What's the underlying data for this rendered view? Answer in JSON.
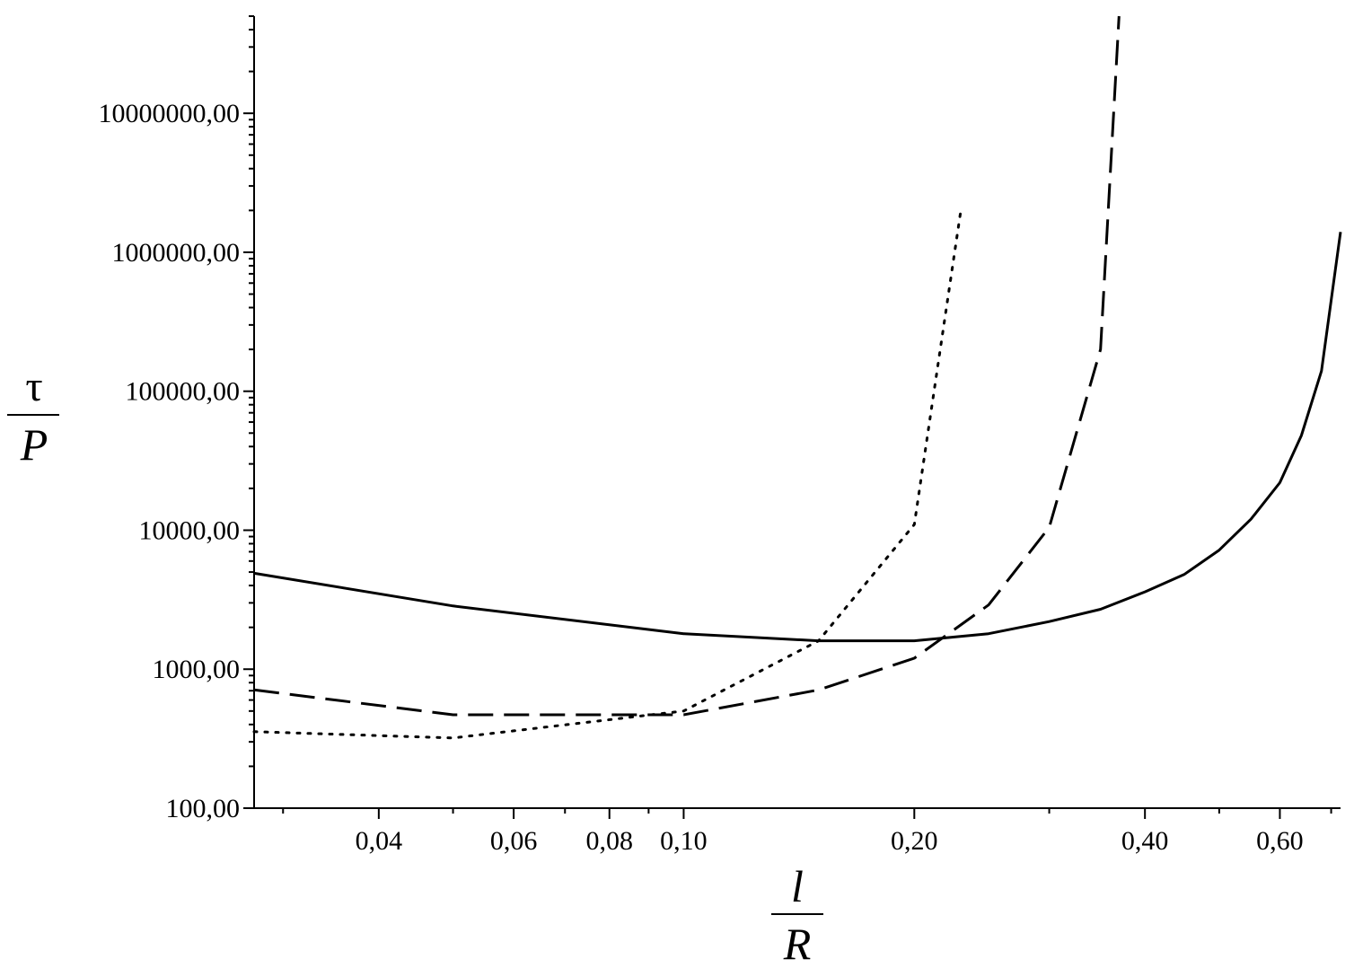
{
  "chart_data": {
    "type": "line",
    "title": "",
    "xscale": "log",
    "yscale": "log",
    "xlim": [
      0.0275,
      0.72
    ],
    "ylim": [
      100,
      50000000
    ],
    "grid": false,
    "legend": "none",
    "xlabel": {
      "numerator": "l",
      "denominator": "R"
    },
    "ylabel": {
      "numerator": "τ",
      "denominator": "P"
    },
    "x_ticks": [
      {
        "value": 0.04,
        "label": "0,04"
      },
      {
        "value": 0.06,
        "label": "0,06"
      },
      {
        "value": 0.08,
        "label": "0,08"
      },
      {
        "value": 0.1,
        "label": "0,10"
      },
      {
        "value": 0.2,
        "label": "0,20"
      },
      {
        "value": 0.4,
        "label": "0,40"
      },
      {
        "value": 0.6,
        "label": "0,60"
      }
    ],
    "y_ticks": [
      {
        "value": 100,
        "label": "100,00"
      },
      {
        "value": 1000,
        "label": "1000,00"
      },
      {
        "value": 10000,
        "label": "10000,00"
      },
      {
        "value": 100000,
        "label": "100000,00"
      },
      {
        "value": 1000000,
        "label": "1000000,00"
      },
      {
        "value": 10000000,
        "label": "10000000,00"
      }
    ],
    "series": [
      {
        "style": "solid",
        "color": "#000000",
        "points": [
          [
            0.0275,
            4900
          ],
          [
            0.05,
            2850
          ],
          [
            0.1,
            1800
          ],
          [
            0.15,
            1600
          ],
          [
            0.2,
            1600
          ],
          [
            0.25,
            1800
          ],
          [
            0.3,
            2200
          ],
          [
            0.35,
            2700
          ],
          [
            0.4,
            3600
          ],
          [
            0.45,
            4800
          ],
          [
            0.5,
            7200
          ],
          [
            0.55,
            12000
          ],
          [
            0.6,
            22000
          ],
          [
            0.64,
            48000
          ],
          [
            0.68,
            140000
          ],
          [
            0.72,
            1400000
          ]
        ]
      },
      {
        "style": "dashed",
        "color": "#000000",
        "points": [
          [
            0.0275,
            710
          ],
          [
            0.05,
            470
          ],
          [
            0.1,
            470
          ],
          [
            0.15,
            710
          ],
          [
            0.2,
            1200
          ],
          [
            0.25,
            2900
          ],
          [
            0.3,
            10500
          ],
          [
            0.35,
            200000
          ],
          [
            0.37,
            50000000
          ]
        ]
      },
      {
        "style": "dotted",
        "color": "#000000",
        "points": [
          [
            0.0275,
            355
          ],
          [
            0.05,
            320
          ],
          [
            0.06,
            360
          ],
          [
            0.1,
            500
          ],
          [
            0.15,
            1600
          ],
          [
            0.2,
            11000
          ],
          [
            0.23,
            2000000
          ]
        ]
      }
    ]
  }
}
